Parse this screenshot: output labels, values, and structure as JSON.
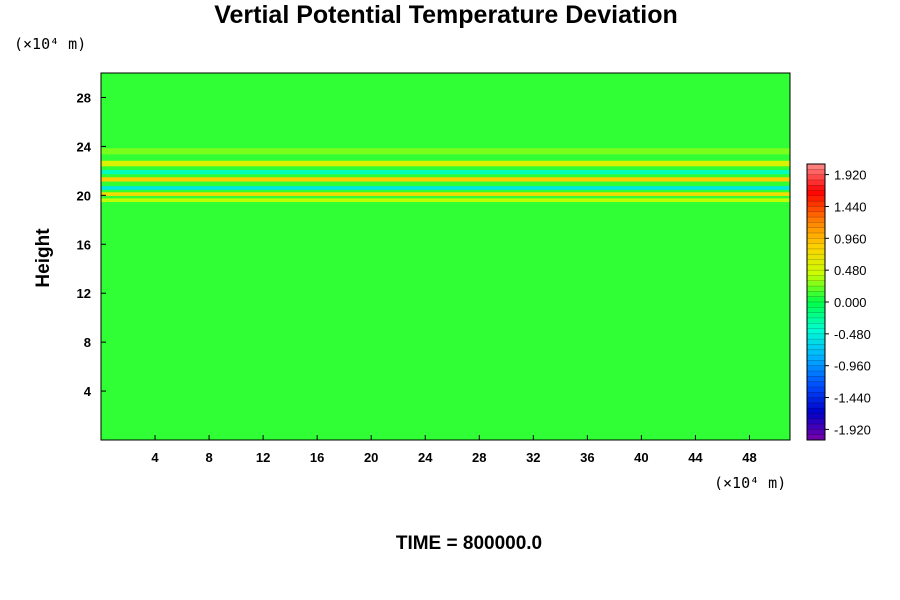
{
  "chart_data": {
    "type": "heatmap",
    "title": "Vertial Potential Temperature Deviation",
    "ylabel": "Height",
    "xlabel": "",
    "x_unit_label": "(×10⁴ m)",
    "y_unit_label": "(×10⁴ m)",
    "x_range": [
      0,
      51
    ],
    "y_range": [
      0,
      30
    ],
    "x_ticks": [
      4,
      8,
      12,
      16,
      20,
      24,
      28,
      32,
      36,
      40,
      44,
      48
    ],
    "y_ticks": [
      4,
      8,
      12,
      16,
      20,
      24,
      28
    ],
    "colorbar": {
      "range": [
        -2.08,
        2.08
      ],
      "tick_labels": [
        "1.920",
        "1.440",
        "0.960",
        "0.480",
        "0.000",
        "-0.480",
        "-0.960",
        "-1.440",
        "-1.920"
      ],
      "colors": [
        "#7a00a8",
        "#0000c8",
        "#0050ff",
        "#00b0ff",
        "#00ffd2",
        "#00ff46",
        "#c8ff00",
        "#ffd200",
        "#ff7800",
        "#ff0000",
        "#ff8c8c"
      ]
    },
    "background_value": 0.1,
    "features": [
      {
        "y": 23.6,
        "value": 0.25,
        "thickness": 0.5
      },
      {
        "y": 22.6,
        "value": 0.55,
        "thickness": 0.45
      },
      {
        "y": 21.9,
        "value": -0.35,
        "thickness": 0.35
      },
      {
        "y": 21.3,
        "value": 0.85,
        "thickness": 0.35
      },
      {
        "y": 20.6,
        "value": -0.55,
        "thickness": 0.3
      },
      {
        "y": 20.1,
        "value": 0.75,
        "thickness": 0.3
      },
      {
        "y": 19.6,
        "value": 0.4,
        "thickness": 0.3
      }
    ],
    "grid": false,
    "colorbar_position": "right"
  },
  "footer": {
    "label": "TIME = 800000.0"
  }
}
